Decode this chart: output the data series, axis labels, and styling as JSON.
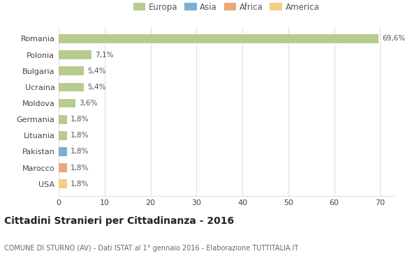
{
  "categories": [
    "Romania",
    "Polonia",
    "Bulgaria",
    "Ucraina",
    "Moldova",
    "Germania",
    "Lituania",
    "Pakistan",
    "Marocco",
    "USA"
  ],
  "values": [
    69.6,
    7.1,
    5.4,
    5.4,
    3.6,
    1.8,
    1.8,
    1.8,
    1.8,
    1.8
  ],
  "labels": [
    "69,6%",
    "7,1%",
    "5,4%",
    "5,4%",
    "3,6%",
    "1,8%",
    "1,8%",
    "1,8%",
    "1,8%",
    "1,8%"
  ],
  "colors": [
    "#b5cc8e",
    "#b5cc8e",
    "#b5cc8e",
    "#b5cc8e",
    "#b5cc8e",
    "#b5cc8e",
    "#b5cc8e",
    "#7bafd4",
    "#e8a87c",
    "#f0d080"
  ],
  "legend_labels": [
    "Europa",
    "Asia",
    "Africa",
    "America"
  ],
  "legend_colors": [
    "#b5cc8e",
    "#7bafd4",
    "#e8a87c",
    "#f0d080"
  ],
  "title": "Cittadini Stranieri per Cittadinanza - 2016",
  "subtitle": "COMUNE DI STURNO (AV) - Dati ISTAT al 1° gennaio 2016 - Elaborazione TUTTITALIA.IT",
  "xlim": [
    0,
    73
  ],
  "xticks": [
    0,
    10,
    20,
    30,
    40,
    50,
    60,
    70
  ],
  "background_color": "#ffffff",
  "grid_color": "#e0e0e0",
  "bar_height": 0.55
}
